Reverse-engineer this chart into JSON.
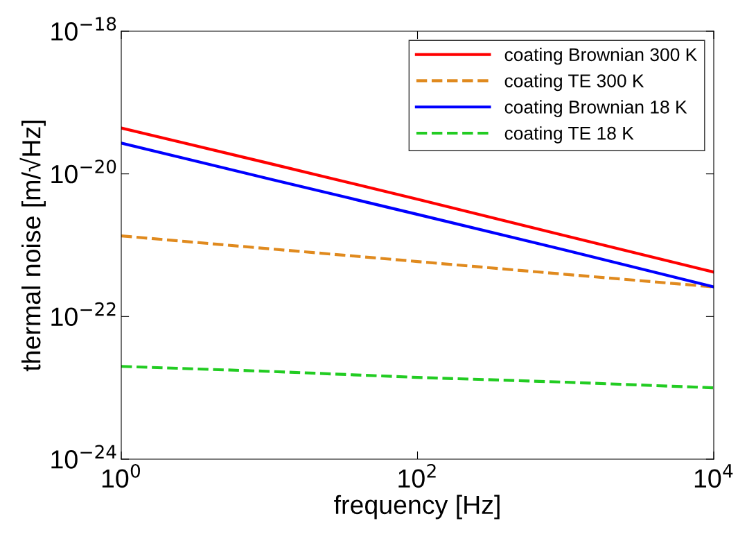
{
  "chart_data": {
    "type": "line",
    "xlabel": "frequency [Hz]",
    "ylabel": "thermal noise [m/√Hz]",
    "log": "xy",
    "grid": false,
    "legend": "top right",
    "x": [
      1,
      10,
      100,
      1000,
      10000
    ],
    "xlim": [
      1,
      10000
    ],
    "xticks": [
      {
        "value": 1,
        "label": "10$^{0}$"
      },
      {
        "value": 100,
        "label": "10$^{2}$"
      },
      {
        "value": 10000,
        "label": "10$^{4}$"
      }
    ],
    "ylim": [
      1e-24,
      1e-18
    ],
    "yticks": [
      {
        "value": 1e-24,
        "label": "10$^{−24}$"
      },
      {
        "value": 1e-22,
        "label": "10$^{−22}$"
      },
      {
        "value": 1e-20,
        "label": "10$^{−20}$"
      },
      {
        "value": 1e-18,
        "label": "10$^{−18}$"
      }
    ],
    "series": [
      {
        "name": "coating Brownian 300 K",
        "color": "#ff0000",
        "line_style": "solid",
        "values": [
          4.4e-20,
          1.4e-20,
          4.4e-21,
          1.35e-21,
          4.2e-22
        ]
      },
      {
        "name": "coating TE 300 K",
        "color": "#e08a1e",
        "line_style": "dashed",
        "values": [
          1.35e-21,
          8.9e-22,
          5.9e-22,
          3.9e-22,
          2.6e-22
        ]
      },
      {
        "name": "coating Brownian 18 K",
        "color": "#0000ff",
        "line_style": "solid",
        "values": [
          2.7e-20,
          8.5e-21,
          2.7e-21,
          8.5e-22,
          2.6e-22
        ]
      },
      {
        "name": "coating TE 18 K",
        "color": "#22cc22",
        "line_style": "dashed",
        "values": [
          2e-23,
          1.7e-23,
          1.4e-23,
          1.2e-23,
          1e-23
        ]
      }
    ]
  }
}
